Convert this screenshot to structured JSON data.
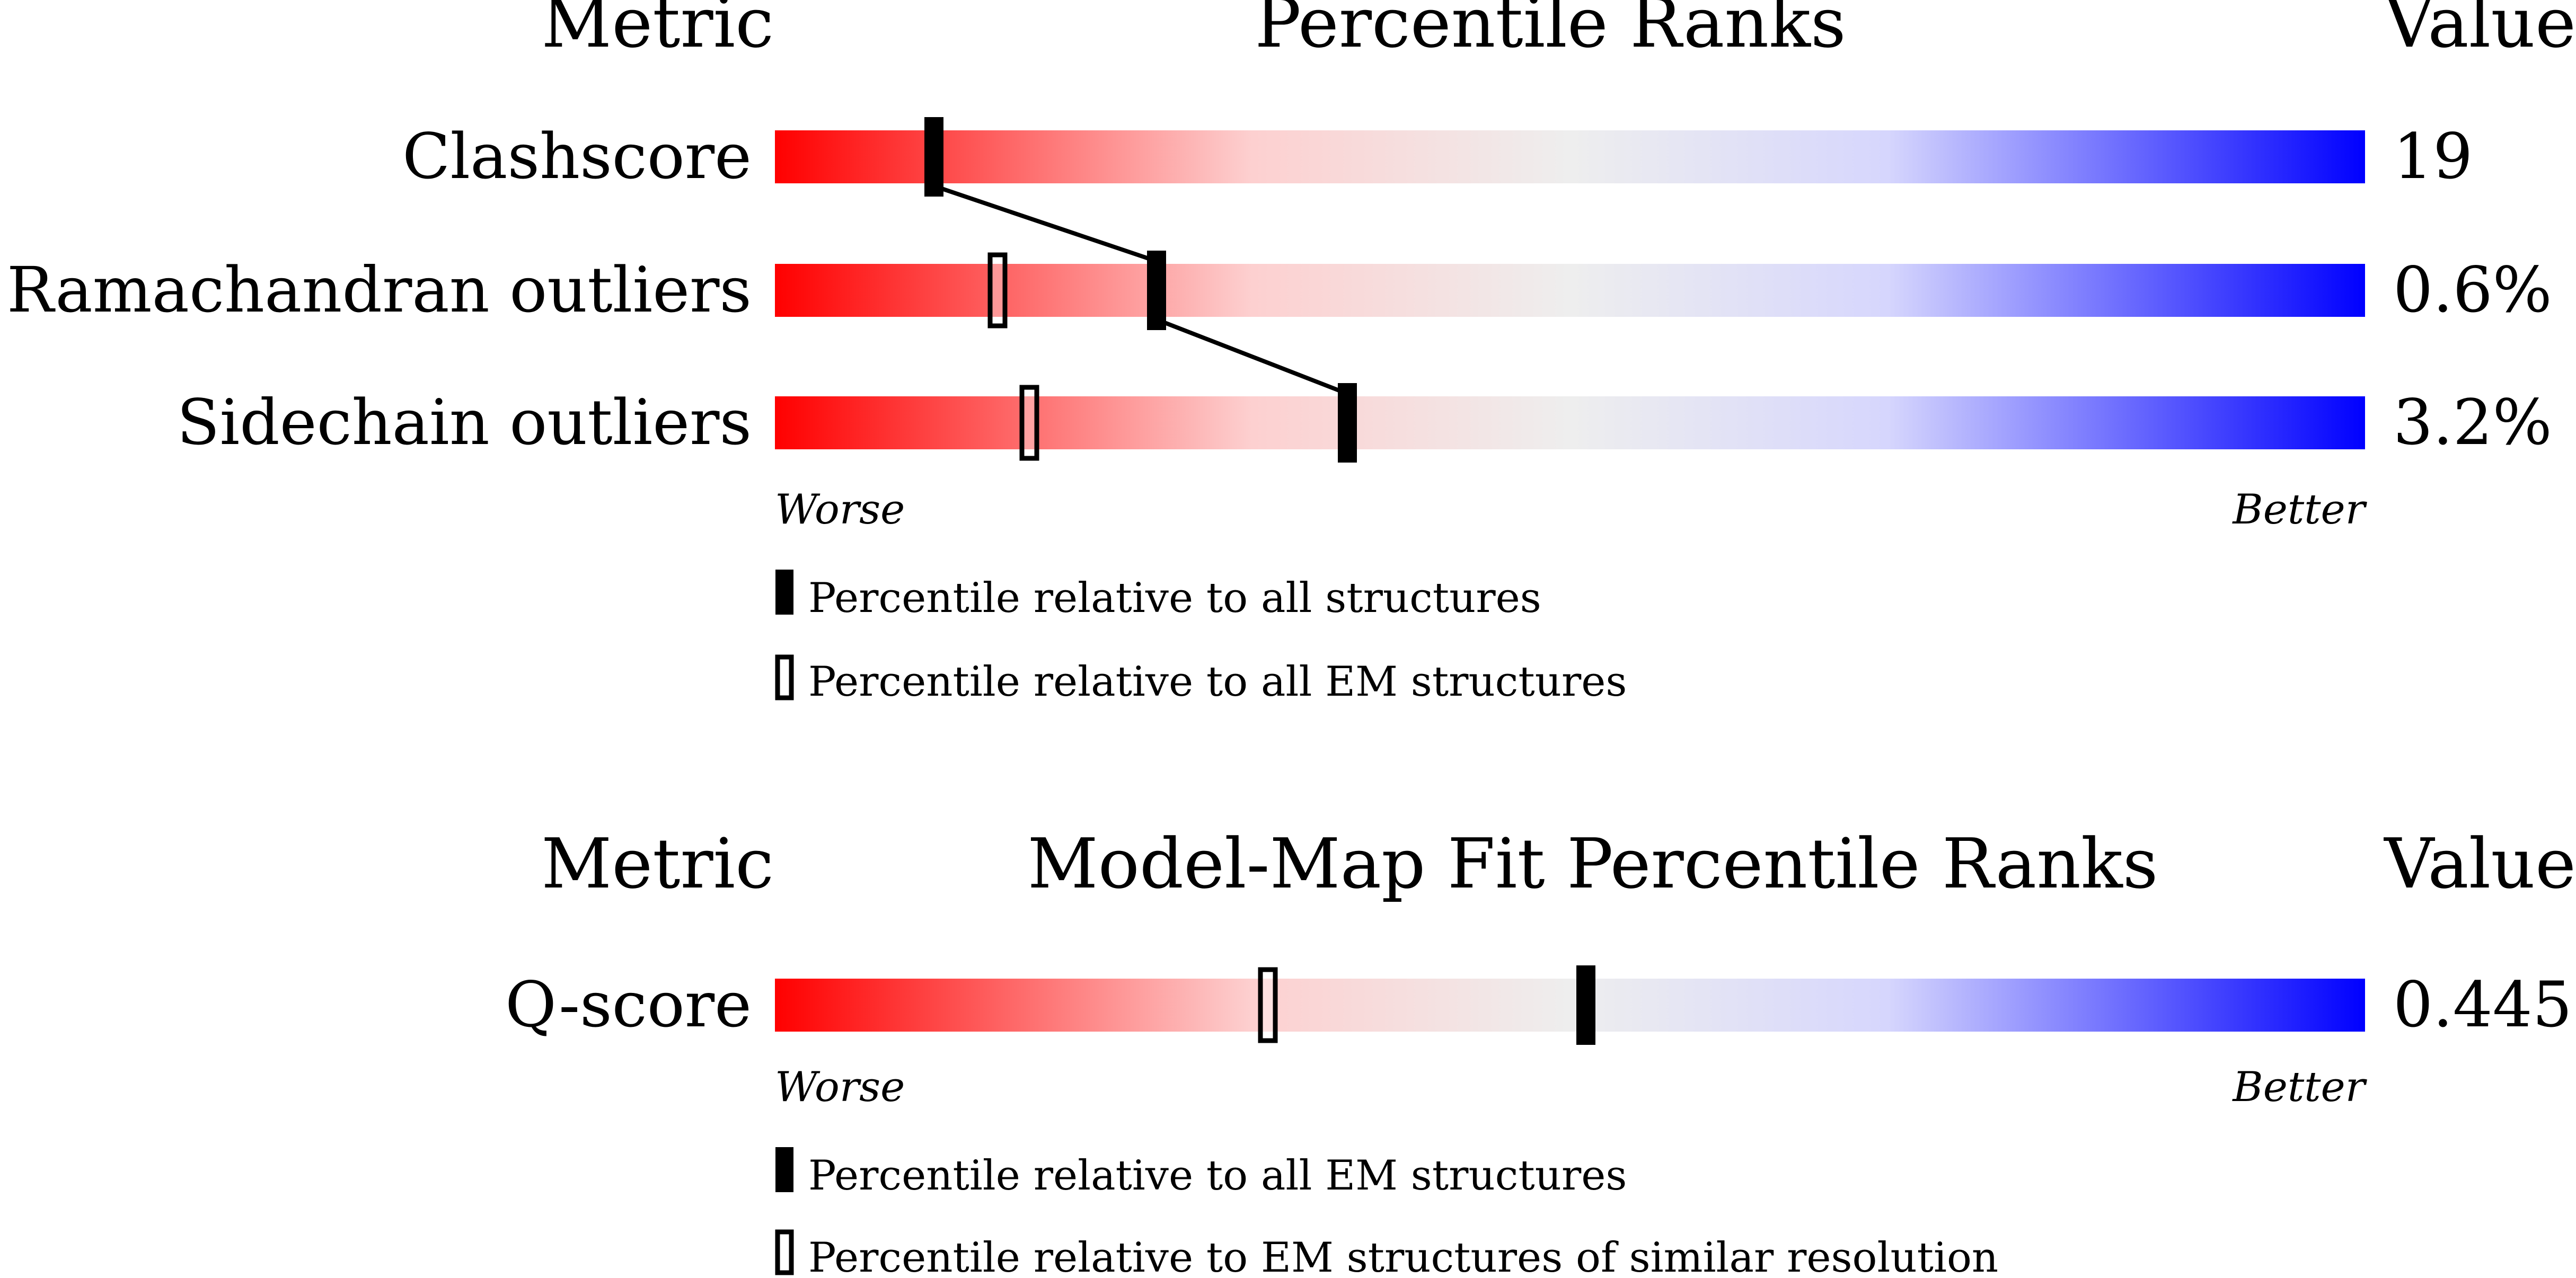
{
  "chart_data": [
    {
      "type": "bar",
      "title": "Percentile Ranks",
      "metric_header": "Metric",
      "value_header": "Value",
      "worse_label": "Worse",
      "better_label": "Better",
      "xlim": [
        0,
        100
      ],
      "rows": [
        {
          "metric": "Clashscore",
          "value": "19",
          "percentile_all": 10,
          "percentile_em": null
        },
        {
          "metric": "Ramachandran outliers",
          "value": "0.6%",
          "percentile_all": 24,
          "percentile_em": 14
        },
        {
          "metric": "Sidechain outliers",
          "value": "3.2%",
          "percentile_all": 36,
          "percentile_em": 16
        }
      ],
      "legend": {
        "filled": "Percentile relative to all structures",
        "open": "Percentile relative to all EM structures"
      }
    },
    {
      "type": "bar",
      "title": "Model-Map Fit Percentile Ranks",
      "metric_header": "Metric",
      "value_header": "Value",
      "worse_label": "Worse",
      "better_label": "Better",
      "xlim": [
        0,
        100
      ],
      "rows": [
        {
          "metric": "Q-score",
          "value": "0.445",
          "percentile_all": 51,
          "percentile_em": 31
        }
      ],
      "legend": {
        "filled": "Percentile relative to all EM structures",
        "open": "Percentile relative to EM structures of similar resolution"
      }
    }
  ],
  "colors": {
    "worse": "#ff0000",
    "mid": "#eeeeee",
    "better": "#0000ff",
    "marker": "#000000"
  }
}
